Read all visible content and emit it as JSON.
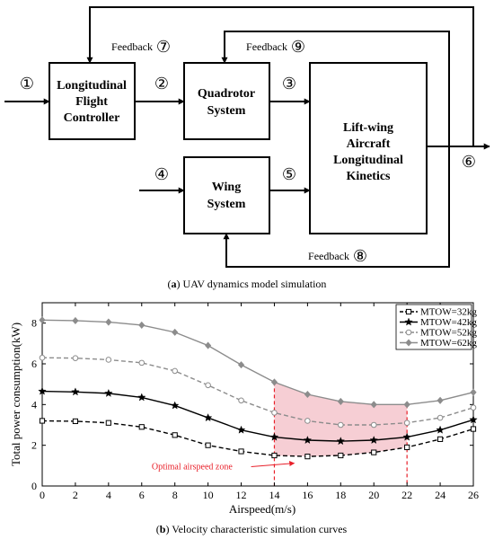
{
  "diagram": {
    "boxes": {
      "controller": [
        "Longitudinal",
        "Flight",
        "Controller"
      ],
      "quadrotor": [
        "Quadrotor",
        "System"
      ],
      "wing": [
        "Wing",
        "System"
      ],
      "kinetics": [
        "Lift-wing",
        "Aircraft",
        "Longitudinal",
        "Kinetics"
      ]
    },
    "signals": {
      "s1": "①",
      "s2": "②",
      "s3": "③",
      "s4": "④",
      "s5": "⑤",
      "s6": "⑥",
      "s7": "⑦",
      "s8": "⑧",
      "s9": "⑨"
    },
    "feedback_label": "Feedback"
  },
  "captions": {
    "a_letter": "a",
    "a_text": "UAV dynamics model simulation",
    "b_letter": "b",
    "b_text": "Velocity characteristic simulation curves"
  },
  "colors": {
    "diagram_line": "#000000",
    "zone_fill": "#f4c6cc",
    "zone_line": "#e8202a",
    "annotation": "#e8202a"
  },
  "chart_data": {
    "type": "line",
    "xlabel": "Airspeed(m/s)",
    "ylabel": "Total power consumption(kW)",
    "xlim": [
      0,
      26
    ],
    "ylim": [
      0,
      9
    ],
    "xticks": [
      0,
      2,
      4,
      6,
      8,
      10,
      12,
      14,
      16,
      18,
      20,
      22,
      24,
      26
    ],
    "yticks": [
      0,
      2,
      4,
      6,
      8
    ],
    "grid": false,
    "legend_position": "top-right",
    "x": [
      0,
      2,
      4,
      6,
      8,
      10,
      12,
      14,
      16,
      18,
      20,
      22,
      24,
      26
    ],
    "series": [
      {
        "name": "MTOW=32kg",
        "color": "#000000",
        "dash": "dashed",
        "marker": "square-open",
        "values": [
          3.2,
          3.18,
          3.1,
          2.9,
          2.5,
          2.0,
          1.7,
          1.5,
          1.45,
          1.5,
          1.65,
          1.9,
          2.3,
          2.8
        ]
      },
      {
        "name": "MTOW=42kg",
        "color": "#000000",
        "dash": "solid",
        "marker": "star",
        "values": [
          4.65,
          4.62,
          4.55,
          4.35,
          3.95,
          3.35,
          2.75,
          2.4,
          2.25,
          2.2,
          2.25,
          2.4,
          2.75,
          3.25
        ]
      },
      {
        "name": "MTOW=52kg",
        "color": "#8c8c8c",
        "dash": "dashed",
        "marker": "circle-open",
        "values": [
          6.3,
          6.28,
          6.2,
          6.05,
          5.65,
          4.95,
          4.2,
          3.6,
          3.2,
          3.0,
          3.0,
          3.1,
          3.35,
          3.85
        ]
      },
      {
        "name": "MTOW=62kg",
        "color": "#8c8c8c",
        "dash": "solid",
        "marker": "diamond",
        "values": [
          8.15,
          8.12,
          8.05,
          7.9,
          7.55,
          6.9,
          5.95,
          5.1,
          4.5,
          4.15,
          4.0,
          4.0,
          4.2,
          4.6
        ]
      }
    ],
    "zone": {
      "from": 14,
      "to": 22,
      "label": "Optimal airspeed zone"
    }
  }
}
